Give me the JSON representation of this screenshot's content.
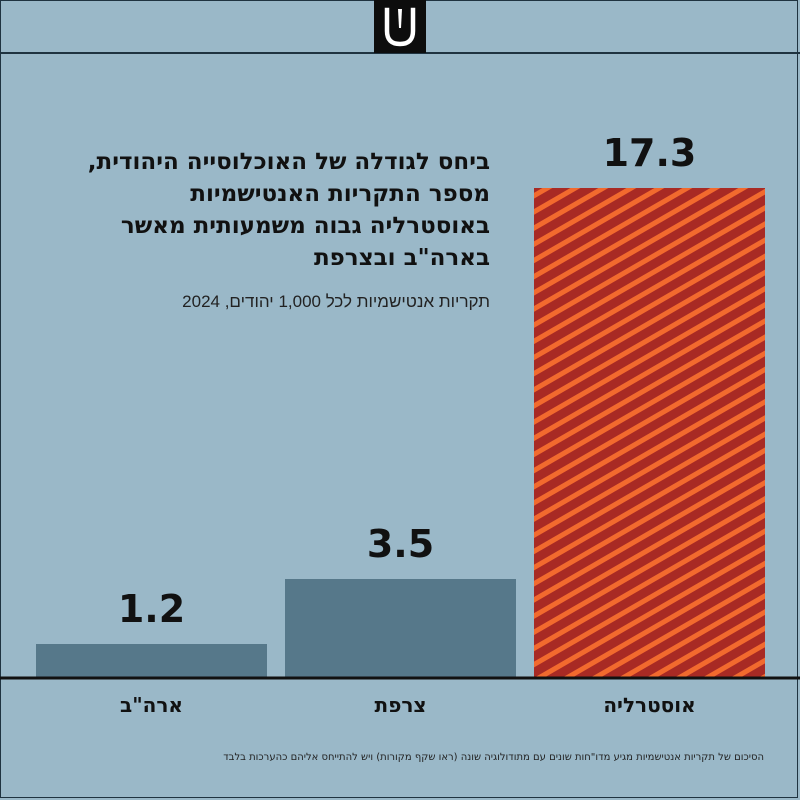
{
  "header": {
    "logo_icon": "shin-logo-icon",
    "colors": {
      "background": "#9ab8c8",
      "logo_bg": "#0d0d0d",
      "logo_fg": "#ffffff"
    }
  },
  "title": "ביחס לגודלה של האוכלוסייה היהודית, מספר התקריות האנטישמיות באוסטרליה גבוה משמעותית מאשר בארה\"ב ובצרפת",
  "subtitle": "תקריות אנטישמיות לכל 1,000 יהודים, 2024",
  "footnote": "הסיכום של תקריות אנטישמיות מגיע מדו\"חות שונים עם מתודולוגיה שונה (ראו שקף מקורות) ויש להתייחס אליהם כהערכות בלבד",
  "colors": {
    "bar": "#56788a",
    "highlight_stripe_a": "#a82a24",
    "highlight_stripe_b": "#f26a2e",
    "axis": "#111111"
  },
  "chart_data": {
    "type": "bar",
    "categories": [
      "ארה\"ב",
      "צרפת",
      "אוסטרליה"
    ],
    "values": [
      1.2,
      3.5,
      17.3
    ],
    "value_labels": [
      "1.2",
      "3.5",
      "17.3"
    ],
    "highlighted_category": "אוסטרליה",
    "title": "ביחס לגודלה של האוכלוסייה היהודית, מספר התקריות האנטישמיות באוסטרליה גבוה משמעותית מאשר בארה\"ב ובצרפת",
    "ylabel": "תקריות אנטישמיות לכל 1,000 יהודים, 2024",
    "xlabel": "",
    "ylim": [
      0,
      17.3
    ],
    "grid": false,
    "legend": "none"
  }
}
